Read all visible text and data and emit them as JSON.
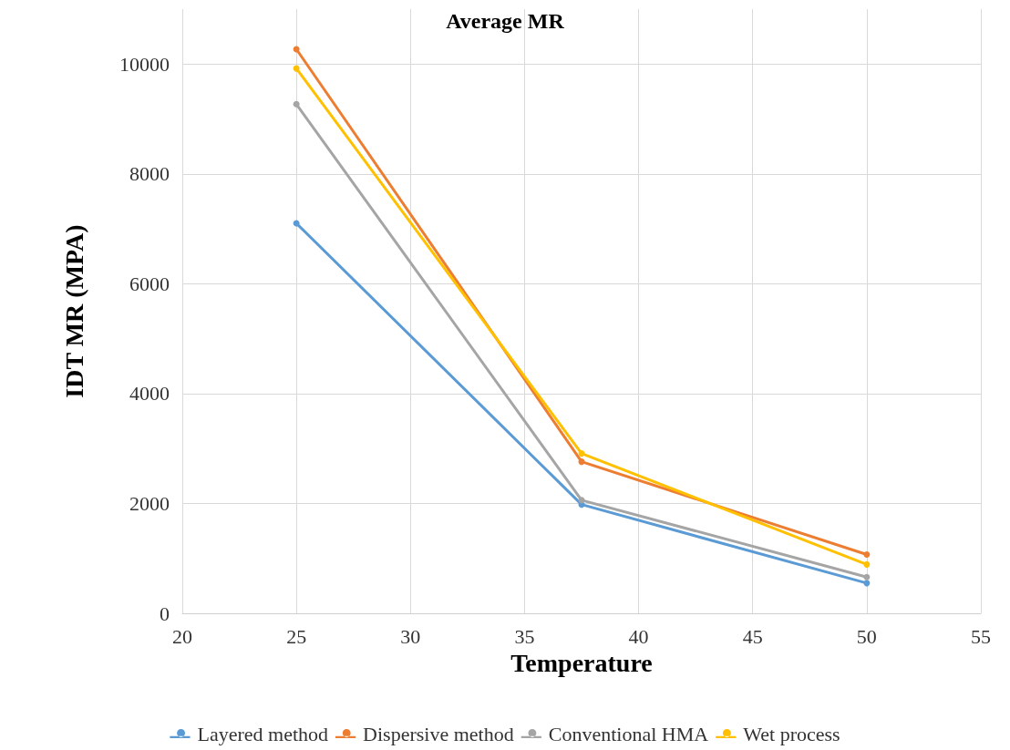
{
  "chart_data": {
    "type": "line",
    "title": "Average MR",
    "xlabel": "Temperature",
    "ylabel": "IDT MR (MPA)",
    "x": [
      25,
      37.5,
      50
    ],
    "series": [
      {
        "name": "Layered method",
        "color": "#5b9bd5",
        "values": [
          7100,
          1980,
          550
        ]
      },
      {
        "name": "Dispersive method",
        "color": "#ed7d31",
        "values": [
          10270,
          2760,
          1070
        ]
      },
      {
        "name": "Conventional HMA",
        "color": "#a5a5a5",
        "values": [
          9270,
          2060,
          660
        ]
      },
      {
        "name": "Wet process",
        "color": "#ffc000",
        "values": [
          9920,
          2910,
          890
        ]
      }
    ],
    "xlim": [
      20,
      55
    ],
    "xticks": [
      20,
      25,
      30,
      35,
      40,
      45,
      50,
      55
    ],
    "ylim": [
      0,
      11000
    ],
    "yticks": [
      0,
      2000,
      4000,
      6000,
      8000,
      10000
    ],
    "grid": true,
    "legend": "bottom",
    "marker": "circle",
    "line_style": "solid"
  }
}
